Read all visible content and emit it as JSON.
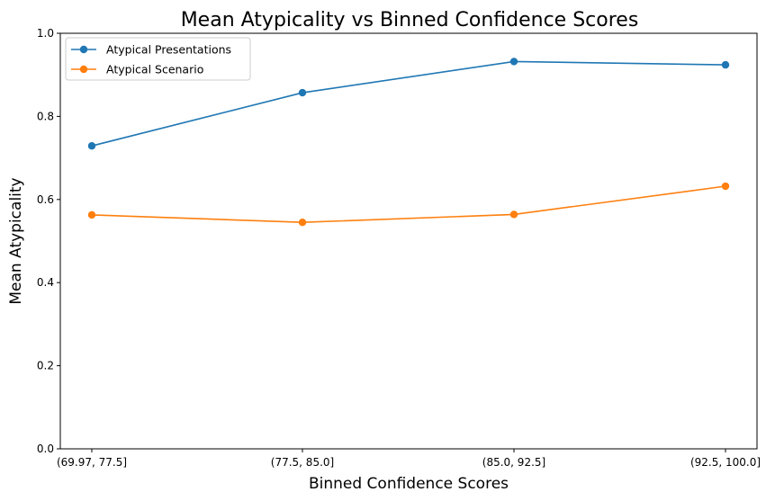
{
  "chart_data": {
    "type": "line",
    "title": "Mean Atypicality vs Binned Confidence Scores",
    "xlabel": "Binned Confidence Scores",
    "ylabel": "Mean Atypicality",
    "categories": [
      "(69.97, 77.5]",
      "(77.5, 85.0]",
      "(85.0, 92.5]",
      "(92.5, 100.0]"
    ],
    "ylim": [
      0,
      1.0
    ],
    "yticks": [
      "0.0",
      "0.2",
      "0.4",
      "0.6",
      "0.8",
      "1.0"
    ],
    "grid": false,
    "legend_position": "top-left",
    "series": [
      {
        "name": "Atypical Presentations",
        "color": "#1f77b4",
        "values": [
          0.729,
          0.857,
          0.932,
          0.924
        ]
      },
      {
        "name": "Atypical Scenario",
        "color": "#ff7f0e",
        "values": [
          0.563,
          0.545,
          0.564,
          0.632
        ]
      }
    ]
  }
}
